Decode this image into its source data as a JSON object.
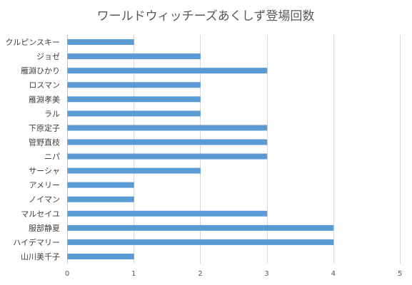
{
  "chart_data": {
    "type": "bar",
    "orientation": "horizontal",
    "title": "ワールドウィッチーズあくしず登場回数",
    "categories": [
      "クルピンスキー",
      "ジョゼ",
      "雁淵ひかり",
      "ロスマン",
      "雁淵孝美",
      "ラル",
      "下原定子",
      "管野直枝",
      "ニパ",
      "サーシャ",
      "アメリー",
      "ノイマン",
      "マルセイユ",
      "服部静夏",
      "ハイデマリー",
      "山川美千子"
    ],
    "values": [
      1,
      2,
      3,
      2,
      2,
      2,
      3,
      3,
      3,
      2,
      1,
      1,
      3,
      4,
      4,
      1
    ],
    "xlim": [
      0,
      5
    ],
    "ticks": [
      0,
      1,
      2,
      3,
      4,
      5
    ],
    "xlabel": "",
    "ylabel": "",
    "grid": true,
    "legend": "none",
    "bar_color": "#5b9bd5"
  }
}
